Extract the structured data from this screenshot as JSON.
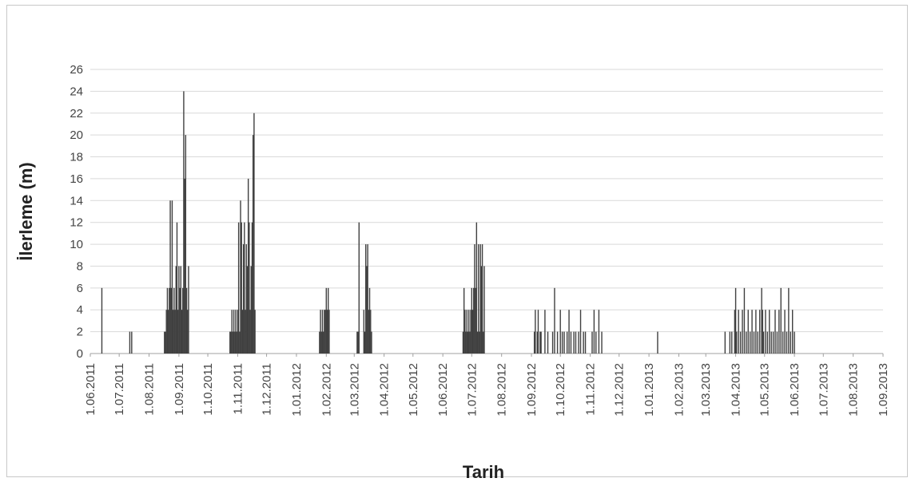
{
  "chart_data": {
    "type": "bar",
    "title": "",
    "xlabel": "Tarih",
    "ylabel": "İlerleme (m)",
    "ylim": [
      0,
      26
    ],
    "yticks": [
      0,
      2,
      4,
      6,
      8,
      10,
      12,
      14,
      16,
      18,
      20,
      22,
      24,
      26
    ],
    "xlim": [
      "2011-06-01",
      "2013-09-01"
    ],
    "x_tick_labels": [
      "1.06.2011",
      "1.07.2011",
      "1.08.2011",
      "1.09.2011",
      "1.10.2011",
      "1.11.2011",
      "1.12.2011",
      "1.01.2012",
      "1.02.2012",
      "1.03.2012",
      "1.04.2012",
      "1.05.2012",
      "1.06.2012",
      "1.07.2012",
      "1.08.2012",
      "1.09.2012",
      "1.10.2012",
      "1.11.2012",
      "1.12.2012",
      "1.01.2013",
      "1.02.2013",
      "1.03.2013",
      "1.04.2013",
      "1.05.2013",
      "1.06.2013",
      "1.07.2013",
      "1.08.2013",
      "1.09.2013"
    ],
    "x_tick_dates": [
      "2011-06-01",
      "2011-07-01",
      "2011-08-01",
      "2011-09-01",
      "2011-10-01",
      "2011-11-01",
      "2011-12-01",
      "2012-01-01",
      "2012-02-01",
      "2012-03-01",
      "2012-04-01",
      "2012-05-01",
      "2012-06-01",
      "2012-07-01",
      "2012-08-01",
      "2012-09-01",
      "2012-10-01",
      "2012-11-01",
      "2012-12-01",
      "2013-01-01",
      "2013-02-01",
      "2013-03-01",
      "2013-04-01",
      "2013-05-01",
      "2013-06-01",
      "2013-07-01",
      "2013-08-01",
      "2013-09-01"
    ],
    "grid": true,
    "legend": "none",
    "bar_color": "#404040",
    "points": [
      {
        "x": "2011-06-13",
        "y": 6
      },
      {
        "x": "2011-07-12",
        "y": 2
      },
      {
        "x": "2011-07-14",
        "y": 2
      },
      {
        "x": "2011-08-17",
        "y": 2
      },
      {
        "x": "2011-08-18",
        "y": 2
      },
      {
        "x": "2011-08-19",
        "y": 4
      },
      {
        "x": "2011-08-20",
        "y": 6
      },
      {
        "x": "2011-08-21",
        "y": 4
      },
      {
        "x": "2011-08-22",
        "y": 6
      },
      {
        "x": "2011-08-23",
        "y": 14
      },
      {
        "x": "2011-08-24",
        "y": 6
      },
      {
        "x": "2011-08-25",
        "y": 14
      },
      {
        "x": "2011-08-26",
        "y": 4
      },
      {
        "x": "2011-08-27",
        "y": 6
      },
      {
        "x": "2011-08-28",
        "y": 4
      },
      {
        "x": "2011-08-29",
        "y": 8
      },
      {
        "x": "2011-08-30",
        "y": 12
      },
      {
        "x": "2011-08-31",
        "y": 4
      },
      {
        "x": "2011-09-01",
        "y": 8
      },
      {
        "x": "2011-09-02",
        "y": 6
      },
      {
        "x": "2011-09-03",
        "y": 8
      },
      {
        "x": "2011-09-04",
        "y": 4
      },
      {
        "x": "2011-09-05",
        "y": 6
      },
      {
        "x": "2011-09-06",
        "y": 24
      },
      {
        "x": "2011-09-07",
        "y": 16
      },
      {
        "x": "2011-09-08",
        "y": 20
      },
      {
        "x": "2011-09-09",
        "y": 6
      },
      {
        "x": "2011-09-10",
        "y": 4
      },
      {
        "x": "2011-09-11",
        "y": 8
      },
      {
        "x": "2011-10-24",
        "y": 2
      },
      {
        "x": "2011-10-25",
        "y": 2
      },
      {
        "x": "2011-10-26",
        "y": 4
      },
      {
        "x": "2011-10-27",
        "y": 2
      },
      {
        "x": "2011-10-28",
        "y": 4
      },
      {
        "x": "2011-10-29",
        "y": 2
      },
      {
        "x": "2011-10-30",
        "y": 4
      },
      {
        "x": "2011-10-31",
        "y": 2
      },
      {
        "x": "2011-11-01",
        "y": 4
      },
      {
        "x": "2011-11-02",
        "y": 12
      },
      {
        "x": "2011-11-03",
        "y": 2
      },
      {
        "x": "2011-11-04",
        "y": 14
      },
      {
        "x": "2011-11-05",
        "y": 12
      },
      {
        "x": "2011-11-06",
        "y": 4
      },
      {
        "x": "2011-11-07",
        "y": 10
      },
      {
        "x": "2011-11-08",
        "y": 12
      },
      {
        "x": "2011-11-09",
        "y": 4
      },
      {
        "x": "2011-11-10",
        "y": 10
      },
      {
        "x": "2011-11-11",
        "y": 8
      },
      {
        "x": "2011-11-12",
        "y": 16
      },
      {
        "x": "2011-11-13",
        "y": 12
      },
      {
        "x": "2011-11-14",
        "y": 4
      },
      {
        "x": "2011-11-15",
        "y": 8
      },
      {
        "x": "2011-11-16",
        "y": 12
      },
      {
        "x": "2011-11-17",
        "y": 20
      },
      {
        "x": "2011-11-18",
        "y": 22
      },
      {
        "x": "2011-11-19",
        "y": 4
      },
      {
        "x": "2012-01-25",
        "y": 2
      },
      {
        "x": "2012-01-26",
        "y": 4
      },
      {
        "x": "2012-01-27",
        "y": 2
      },
      {
        "x": "2012-01-28",
        "y": 4
      },
      {
        "x": "2012-01-29",
        "y": 2
      },
      {
        "x": "2012-01-30",
        "y": 4
      },
      {
        "x": "2012-01-31",
        "y": 4
      },
      {
        "x": "2012-02-01",
        "y": 6
      },
      {
        "x": "2012-02-02",
        "y": 4
      },
      {
        "x": "2012-02-03",
        "y": 6
      },
      {
        "x": "2012-02-04",
        "y": 4
      },
      {
        "x": "2012-03-04",
        "y": 2
      },
      {
        "x": "2012-03-05",
        "y": 2
      },
      {
        "x": "2012-03-06",
        "y": 12
      },
      {
        "x": "2012-03-11",
        "y": 4
      },
      {
        "x": "2012-03-12",
        "y": 2
      },
      {
        "x": "2012-03-13",
        "y": 10
      },
      {
        "x": "2012-03-14",
        "y": 8
      },
      {
        "x": "2012-03-15",
        "y": 10
      },
      {
        "x": "2012-03-16",
        "y": 4
      },
      {
        "x": "2012-03-17",
        "y": 6
      },
      {
        "x": "2012-03-18",
        "y": 4
      },
      {
        "x": "2012-03-19",
        "y": 2
      },
      {
        "x": "2012-06-22",
        "y": 2
      },
      {
        "x": "2012-06-23",
        "y": 6
      },
      {
        "x": "2012-06-24",
        "y": 4
      },
      {
        "x": "2012-06-25",
        "y": 2
      },
      {
        "x": "2012-06-26",
        "y": 4
      },
      {
        "x": "2012-06-27",
        "y": 2
      },
      {
        "x": "2012-06-28",
        "y": 4
      },
      {
        "x": "2012-06-29",
        "y": 2
      },
      {
        "x": "2012-06-30",
        "y": 4
      },
      {
        "x": "2012-07-01",
        "y": 6
      },
      {
        "x": "2012-07-02",
        "y": 4
      },
      {
        "x": "2012-07-03",
        "y": 6
      },
      {
        "x": "2012-07-04",
        "y": 10
      },
      {
        "x": "2012-07-05",
        "y": 6
      },
      {
        "x": "2012-07-06",
        "y": 12
      },
      {
        "x": "2012-07-07",
        "y": 2
      },
      {
        "x": "2012-07-08",
        "y": 10
      },
      {
        "x": "2012-07-09",
        "y": 2
      },
      {
        "x": "2012-07-10",
        "y": 10
      },
      {
        "x": "2012-07-11",
        "y": 8
      },
      {
        "x": "2012-07-12",
        "y": 10
      },
      {
        "x": "2012-07-13",
        "y": 2
      },
      {
        "x": "2012-07-14",
        "y": 8
      },
      {
        "x": "2012-09-04",
        "y": 2
      },
      {
        "x": "2012-09-05",
        "y": 4
      },
      {
        "x": "2012-09-07",
        "y": 2
      },
      {
        "x": "2012-09-08",
        "y": 4
      },
      {
        "x": "2012-09-10",
        "y": 2
      },
      {
        "x": "2012-09-11",
        "y": 2
      },
      {
        "x": "2012-09-15",
        "y": 4
      },
      {
        "x": "2012-09-18",
        "y": 2
      },
      {
        "x": "2012-09-23",
        "y": 2
      },
      {
        "x": "2012-09-25",
        "y": 6
      },
      {
        "x": "2012-09-28",
        "y": 2
      },
      {
        "x": "2012-10-01",
        "y": 4
      },
      {
        "x": "2012-10-03",
        "y": 2
      },
      {
        "x": "2012-10-05",
        "y": 2
      },
      {
        "x": "2012-10-08",
        "y": 2
      },
      {
        "x": "2012-10-10",
        "y": 4
      },
      {
        "x": "2012-10-12",
        "y": 2
      },
      {
        "x": "2012-10-15",
        "y": 2
      },
      {
        "x": "2012-10-17",
        "y": 2
      },
      {
        "x": "2012-10-20",
        "y": 2
      },
      {
        "x": "2012-10-22",
        "y": 4
      },
      {
        "x": "2012-10-25",
        "y": 2
      },
      {
        "x": "2012-10-27",
        "y": 2
      },
      {
        "x": "2012-11-03",
        "y": 2
      },
      {
        "x": "2012-11-05",
        "y": 4
      },
      {
        "x": "2012-11-07",
        "y": 2
      },
      {
        "x": "2012-11-10",
        "y": 4
      },
      {
        "x": "2012-11-13",
        "y": 2
      },
      {
        "x": "2013-01-10",
        "y": 2
      },
      {
        "x": "2013-03-21",
        "y": 2
      },
      {
        "x": "2013-03-26",
        "y": 2
      },
      {
        "x": "2013-03-28",
        "y": 2
      },
      {
        "x": "2013-03-31",
        "y": 4
      },
      {
        "x": "2013-04-01",
        "y": 6
      },
      {
        "x": "2013-04-02",
        "y": 2
      },
      {
        "x": "2013-04-04",
        "y": 4
      },
      {
        "x": "2013-04-06",
        "y": 2
      },
      {
        "x": "2013-04-08",
        "y": 4
      },
      {
        "x": "2013-04-10",
        "y": 6
      },
      {
        "x": "2013-04-12",
        "y": 2
      },
      {
        "x": "2013-04-14",
        "y": 4
      },
      {
        "x": "2013-04-16",
        "y": 2
      },
      {
        "x": "2013-04-18",
        "y": 4
      },
      {
        "x": "2013-04-20",
        "y": 2
      },
      {
        "x": "2013-04-22",
        "y": 4
      },
      {
        "x": "2013-04-24",
        "y": 2
      },
      {
        "x": "2013-04-26",
        "y": 4
      },
      {
        "x": "2013-04-28",
        "y": 6
      },
      {
        "x": "2013-04-29",
        "y": 4
      },
      {
        "x": "2013-04-30",
        "y": 2
      },
      {
        "x": "2013-05-02",
        "y": 4
      },
      {
        "x": "2013-05-04",
        "y": 2
      },
      {
        "x": "2013-05-06",
        "y": 4
      },
      {
        "x": "2013-05-08",
        "y": 2
      },
      {
        "x": "2013-05-10",
        "y": 2
      },
      {
        "x": "2013-05-12",
        "y": 4
      },
      {
        "x": "2013-05-14",
        "y": 2
      },
      {
        "x": "2013-05-16",
        "y": 4
      },
      {
        "x": "2013-05-18",
        "y": 6
      },
      {
        "x": "2013-05-20",
        "y": 2
      },
      {
        "x": "2013-05-22",
        "y": 4
      },
      {
        "x": "2013-05-24",
        "y": 2
      },
      {
        "x": "2013-05-26",
        "y": 6
      },
      {
        "x": "2013-05-28",
        "y": 2
      },
      {
        "x": "2013-05-30",
        "y": 4
      },
      {
        "x": "2013-06-01",
        "y": 2
      }
    ]
  }
}
